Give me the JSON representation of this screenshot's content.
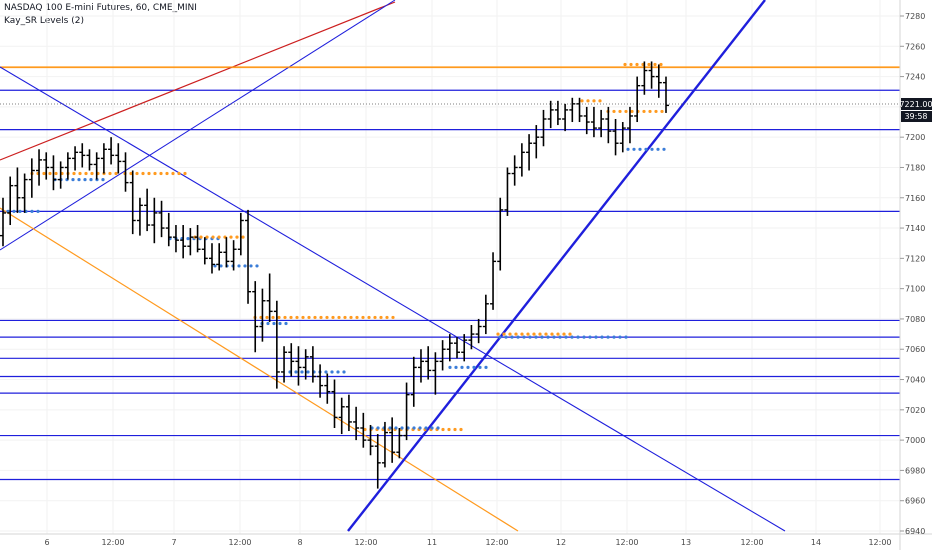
{
  "header": {
    "symbol_line": "NASDAQ 100 E-mini Futures, 60, CME_MINI",
    "study_line": "Kay_SR Levels (2)"
  },
  "price_axis": {
    "last_price": "7221.00",
    "countdown": "39:58"
  },
  "colors": {
    "candle": "#000000",
    "level": "#1f1fdc",
    "trend_bold": "#1f1fdc",
    "orange_line": "#ff9a1f",
    "red_line": "#cc1f1f",
    "support_dots": "#3b7dd8",
    "resistance_dots": "#ff9a1f",
    "last_tag_bg": "#131722",
    "countdown_bg": "#131722"
  },
  "chart_data": {
    "type": "ohlc",
    "y_ticks": [
      6940,
      6960,
      6980,
      7000,
      7020,
      7040,
      7060,
      7080,
      7100,
      7120,
      7140,
      7160,
      7180,
      7200,
      7220,
      7240,
      7260,
      7280
    ],
    "x_ticks": [
      "6",
      "12:00",
      "7",
      "12:00",
      "8",
      "12:00",
      "11",
      "12:00",
      "12",
      "12:00",
      "13",
      "12:00",
      "14",
      "12:00"
    ],
    "ylim": [
      6938,
      7286
    ],
    "horizontal_levels": [
      7246,
      7231,
      7205,
      7151,
      7079,
      7068,
      7054,
      7042,
      7031,
      7003,
      6974
    ],
    "ohlc": [
      [
        7135,
        7160,
        7128,
        7150
      ],
      [
        7150,
        7174,
        7142,
        7168
      ],
      [
        7168,
        7180,
        7150,
        7160
      ],
      [
        7160,
        7176,
        7150,
        7172
      ],
      [
        7172,
        7186,
        7160,
        7178
      ],
      [
        7178,
        7192,
        7168,
        7185
      ],
      [
        7185,
        7190,
        7172,
        7180
      ],
      [
        7180,
        7188,
        7165,
        7172
      ],
      [
        7172,
        7184,
        7166,
        7180
      ],
      [
        7180,
        7190,
        7172,
        7186
      ],
      [
        7186,
        7194,
        7178,
        7190
      ],
      [
        7190,
        7196,
        7180,
        7188
      ],
      [
        7188,
        7192,
        7178,
        7182
      ],
      [
        7182,
        7190,
        7172,
        7186
      ],
      [
        7186,
        7196,
        7176,
        7192
      ],
      [
        7192,
        7200,
        7182,
        7188
      ],
      [
        7188,
        7196,
        7176,
        7184
      ],
      [
        7184,
        7190,
        7164,
        7170
      ],
      [
        7170,
        7178,
        7136,
        7145
      ],
      [
        7145,
        7160,
        7135,
        7155
      ],
      [
        7155,
        7166,
        7138,
        7142
      ],
      [
        7142,
        7160,
        7130,
        7150
      ],
      [
        7150,
        7158,
        7134,
        7140
      ],
      [
        7140,
        7150,
        7128,
        7134
      ],
      [
        7134,
        7142,
        7124,
        7132
      ],
      [
        7132,
        7142,
        7120,
        7128
      ],
      [
        7128,
        7140,
        7122,
        7134
      ],
      [
        7134,
        7142,
        7124,
        7126
      ],
      [
        7126,
        7134,
        7116,
        7120
      ],
      [
        7120,
        7130,
        7110,
        7116
      ],
      [
        7116,
        7130,
        7112,
        7124
      ],
      [
        7124,
        7134,
        7114,
        7118
      ],
      [
        7118,
        7132,
        7112,
        7126
      ],
      [
        7126,
        7150,
        7122,
        7145
      ],
      [
        7145,
        7152,
        7090,
        7098
      ],
      [
        7098,
        7105,
        7058,
        7075
      ],
      [
        7075,
        7100,
        7065,
        7092
      ],
      [
        7092,
        7110,
        7078,
        7085
      ],
      [
        7085,
        7092,
        7034,
        7045
      ],
      [
        7045,
        7062,
        7038,
        7058
      ],
      [
        7058,
        7064,
        7042,
        7052
      ],
      [
        7052,
        7062,
        7036,
        7048
      ],
      [
        7048,
        7060,
        7040,
        7055
      ],
      [
        7055,
        7062,
        7038,
        7042
      ],
      [
        7042,
        7050,
        7028,
        7036
      ],
      [
        7036,
        7044,
        7024,
        7032
      ],
      [
        7032,
        7040,
        7008,
        7015
      ],
      [
        7015,
        7028,
        7004,
        7022
      ],
      [
        7022,
        7030,
        7006,
        7012
      ],
      [
        7012,
        7022,
        7000,
        7008
      ],
      [
        7008,
        7018,
        6995,
        7000
      ],
      [
        7000,
        7010,
        6990,
        6996
      ],
      [
        6996,
        7004,
        6968,
        6985
      ],
      [
        6985,
        7012,
        6982,
        7005
      ],
      [
        7005,
        7015,
        6985,
        6992
      ],
      [
        6992,
        7008,
        6988,
        7003
      ],
      [
        7003,
        7038,
        7000,
        7030
      ],
      [
        7030,
        7055,
        7022,
        7048
      ],
      [
        7048,
        7060,
        7038,
        7052
      ],
      [
        7052,
        7062,
        7040,
        7046
      ],
      [
        7046,
        7058,
        7030,
        7052
      ],
      [
        7052,
        7066,
        7046,
        7060
      ],
      [
        7060,
        7070,
        7052,
        7064
      ],
      [
        7064,
        7068,
        7054,
        7058
      ],
      [
        7058,
        7070,
        7052,
        7066
      ],
      [
        7066,
        7076,
        7060,
        7070
      ],
      [
        7070,
        7080,
        7064,
        7075
      ],
      [
        7075,
        7096,
        7070,
        7090
      ],
      [
        7090,
        7124,
        7086,
        7118
      ],
      [
        7118,
        7160,
        7112,
        7152
      ],
      [
        7152,
        7180,
        7148,
        7176
      ],
      [
        7176,
        7188,
        7168,
        7180
      ],
      [
        7180,
        7196,
        7174,
        7190
      ],
      [
        7190,
        7202,
        7178,
        7196
      ],
      [
        7196,
        7208,
        7186,
        7200
      ],
      [
        7200,
        7218,
        7194,
        7212
      ],
      [
        7212,
        7224,
        7206,
        7218
      ],
      [
        7218,
        7224,
        7208,
        7212
      ],
      [
        7212,
        7222,
        7204,
        7218
      ],
      [
        7218,
        7226,
        7210,
        7222
      ],
      [
        7222,
        7226,
        7210,
        7214
      ],
      [
        7214,
        7220,
        7202,
        7210
      ],
      [
        7210,
        7220,
        7200,
        7206
      ],
      [
        7206,
        7218,
        7200,
        7212
      ],
      [
        7212,
        7220,
        7196,
        7204
      ],
      [
        7204,
        7212,
        7188,
        7196
      ],
      [
        7196,
        7210,
        7190,
        7206
      ],
      [
        7206,
        7220,
        7196,
        7214
      ],
      [
        7214,
        7240,
        7210,
        7234
      ],
      [
        7234,
        7250,
        7228,
        7244
      ],
      [
        7244,
        7250,
        7232,
        7240
      ],
      [
        7240,
        7248,
        7226,
        7236
      ],
      [
        7236,
        7240,
        7216,
        7221
      ]
    ]
  }
}
